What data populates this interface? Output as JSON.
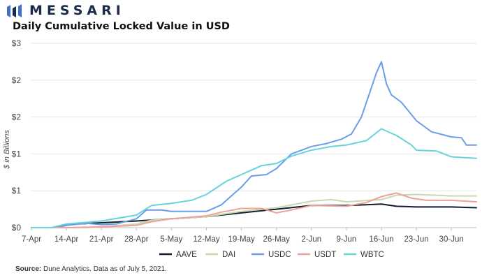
{
  "brand": {
    "name": "MESSARI"
  },
  "title": "Daily Cumulative Locked Value in USD",
  "source": {
    "label": "Source:",
    "text": " Dune Analytics. Data as of July 5, 2021."
  },
  "chart_data": {
    "type": "line",
    "title": "Daily Cumulative Locked Value in USD",
    "ylabel": "$ in Billions",
    "xlabel": "",
    "x_tick_labels": [
      "7-Apr",
      "14-Apr",
      "21-Apr",
      "28-Apr",
      "5-May",
      "12-May",
      "19-May",
      "26-May",
      "2-Jun",
      "9-Jun",
      "16-Jun",
      "23-Jun",
      "30-Jun"
    ],
    "y_tick_labels": [
      "$0",
      "$1",
      "$1",
      "$2",
      "$2",
      "$3"
    ],
    "ylim": [
      0,
      2.5
    ],
    "x_start": "2021-04-07",
    "x_end": "2021-07-05",
    "grid": "horizontal",
    "legend": "bottom",
    "series": [
      {
        "name": "AAVE",
        "color": "#0f1d2e",
        "points": [
          [
            "2021-04-07",
            0
          ],
          [
            "2021-04-12",
            0
          ],
          [
            "2021-04-14",
            0.04
          ],
          [
            "2021-04-19",
            0.06
          ],
          [
            "2021-04-28",
            0.09
          ],
          [
            "2021-05-05",
            0.12
          ],
          [
            "2021-05-12",
            0.15
          ],
          [
            "2021-05-19",
            0.2
          ],
          [
            "2021-05-26",
            0.25
          ],
          [
            "2021-06-02",
            0.3
          ],
          [
            "2021-06-09",
            0.3
          ],
          [
            "2021-06-13",
            0.31
          ],
          [
            "2021-06-16",
            0.32
          ],
          [
            "2021-06-19",
            0.29
          ],
          [
            "2021-06-23",
            0.28
          ],
          [
            "2021-06-30",
            0.28
          ],
          [
            "2021-07-05",
            0.27
          ]
        ]
      },
      {
        "name": "DAI",
        "color": "#c9d9b0",
        "points": [
          [
            "2021-04-07",
            0
          ],
          [
            "2021-04-18",
            0
          ],
          [
            "2021-04-21",
            0.01
          ],
          [
            "2021-04-28",
            0.05
          ],
          [
            "2021-05-01",
            0.1
          ],
          [
            "2021-05-05",
            0.12
          ],
          [
            "2021-05-12",
            0.15
          ],
          [
            "2021-05-19",
            0.22
          ],
          [
            "2021-05-26",
            0.27
          ],
          [
            "2021-06-02",
            0.36
          ],
          [
            "2021-06-06",
            0.38
          ],
          [
            "2021-06-09",
            0.35
          ],
          [
            "2021-06-16",
            0.38
          ],
          [
            "2021-06-19",
            0.44
          ],
          [
            "2021-06-23",
            0.45
          ],
          [
            "2021-06-30",
            0.43
          ],
          [
            "2021-07-05",
            0.43
          ]
        ]
      },
      {
        "name": "USDC",
        "color": "#6c9ee8",
        "points": [
          [
            "2021-04-07",
            0
          ],
          [
            "2021-04-12",
            0
          ],
          [
            "2021-04-14",
            0.03
          ],
          [
            "2021-04-18",
            0.06
          ],
          [
            "2021-04-21",
            0.04
          ],
          [
            "2021-04-24",
            0.05
          ],
          [
            "2021-04-28",
            0.12
          ],
          [
            "2021-04-30",
            0.24
          ],
          [
            "2021-05-03",
            0.24
          ],
          [
            "2021-05-05",
            0.22
          ],
          [
            "2021-05-12",
            0.22
          ],
          [
            "2021-05-15",
            0.31
          ],
          [
            "2021-05-19",
            0.55
          ],
          [
            "2021-05-21",
            0.7
          ],
          [
            "2021-05-24",
            0.72
          ],
          [
            "2021-05-26",
            0.8
          ],
          [
            "2021-05-29",
            1.0
          ],
          [
            "2021-06-02",
            1.1
          ],
          [
            "2021-06-05",
            1.14
          ],
          [
            "2021-06-08",
            1.2
          ],
          [
            "2021-06-10",
            1.27
          ],
          [
            "2021-06-12",
            1.5
          ],
          [
            "2021-06-14",
            1.9
          ],
          [
            "2021-06-15",
            2.1
          ],
          [
            "2021-06-16",
            2.25
          ],
          [
            "2021-06-17",
            1.95
          ],
          [
            "2021-06-18",
            1.8
          ],
          [
            "2021-06-20",
            1.7
          ],
          [
            "2021-06-23",
            1.45
          ],
          [
            "2021-06-26",
            1.3
          ],
          [
            "2021-06-30",
            1.23
          ],
          [
            "2021-07-02",
            1.22
          ],
          [
            "2021-07-03",
            1.12
          ],
          [
            "2021-07-05",
            1.12
          ]
        ]
      },
      {
        "name": "USDT",
        "color": "#f0a09a",
        "points": [
          [
            "2021-04-07",
            0
          ],
          [
            "2021-04-14",
            0
          ],
          [
            "2021-04-21",
            0.01
          ],
          [
            "2021-04-28",
            0.03
          ],
          [
            "2021-05-01",
            0.08
          ],
          [
            "2021-05-05",
            0.12
          ],
          [
            "2021-05-12",
            0.16
          ],
          [
            "2021-05-15",
            0.21
          ],
          [
            "2021-05-19",
            0.26
          ],
          [
            "2021-05-23",
            0.26
          ],
          [
            "2021-05-26",
            0.2
          ],
          [
            "2021-05-29",
            0.24
          ],
          [
            "2021-06-02",
            0.3
          ],
          [
            "2021-06-09",
            0.29
          ],
          [
            "2021-06-13",
            0.34
          ],
          [
            "2021-06-16",
            0.42
          ],
          [
            "2021-06-19",
            0.47
          ],
          [
            "2021-06-22",
            0.4
          ],
          [
            "2021-06-25",
            0.37
          ],
          [
            "2021-06-30",
            0.37
          ],
          [
            "2021-07-05",
            0.35
          ]
        ]
      },
      {
        "name": "WBTC",
        "color": "#66d3dd",
        "points": [
          [
            "2021-04-07",
            0
          ],
          [
            "2021-04-11",
            0
          ],
          [
            "2021-04-14",
            0.05
          ],
          [
            "2021-04-21",
            0.09
          ],
          [
            "2021-04-28",
            0.17
          ],
          [
            "2021-05-01",
            0.3
          ],
          [
            "2021-05-05",
            0.33
          ],
          [
            "2021-05-09",
            0.37
          ],
          [
            "2021-05-12",
            0.45
          ],
          [
            "2021-05-16",
            0.63
          ],
          [
            "2021-05-19",
            0.72
          ],
          [
            "2021-05-23",
            0.84
          ],
          [
            "2021-05-26",
            0.87
          ],
          [
            "2021-05-29",
            0.97
          ],
          [
            "2021-06-02",
            1.05
          ],
          [
            "2021-06-06",
            1.1
          ],
          [
            "2021-06-09",
            1.12
          ],
          [
            "2021-06-13",
            1.18
          ],
          [
            "2021-06-16",
            1.34
          ],
          [
            "2021-06-19",
            1.25
          ],
          [
            "2021-06-22",
            1.12
          ],
          [
            "2021-06-23",
            1.05
          ],
          [
            "2021-06-27",
            1.04
          ],
          [
            "2021-06-30",
            0.96
          ],
          [
            "2021-07-05",
            0.94
          ]
        ]
      }
    ]
  }
}
